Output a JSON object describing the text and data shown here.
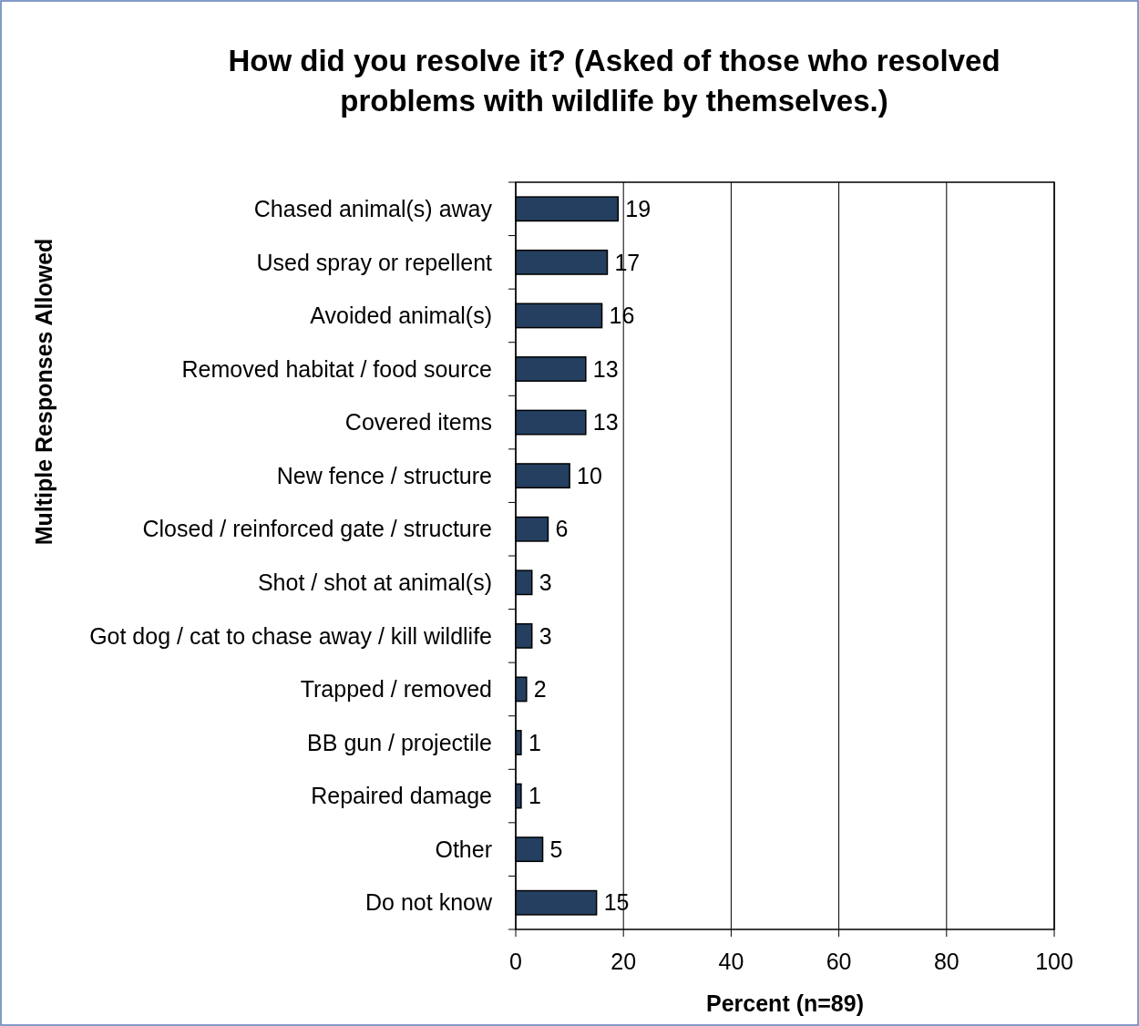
{
  "chart_data": {
    "type": "bar",
    "orientation": "horizontal",
    "title": "How did you resolve it? (Asked of those who resolved problems with wildlife by themselves.)",
    "xlabel": "Percent (n=89)",
    "ylabel": "Multiple Responses Allowed",
    "categories": [
      "Chased animal(s) away",
      "Used spray or repellent",
      "Avoided animal(s)",
      "Removed habitat / food source",
      "Covered items",
      "New fence / structure",
      "Closed / reinforced gate / structure",
      "Shot / shot at animal(s)",
      "Got dog / cat to chase away / kill wildlife",
      "Trapped / removed",
      "BB gun / projectile",
      "Repaired damage",
      "Other",
      "Do not know"
    ],
    "values": [
      19,
      17,
      16,
      13,
      13,
      10,
      6,
      3,
      3,
      2,
      1,
      1,
      5,
      15
    ],
    "color": "#243f60",
    "xlim": [
      0,
      100
    ],
    "xticks": [
      0,
      20,
      40,
      60,
      80,
      100
    ],
    "grid": "x",
    "data_labels": true
  }
}
